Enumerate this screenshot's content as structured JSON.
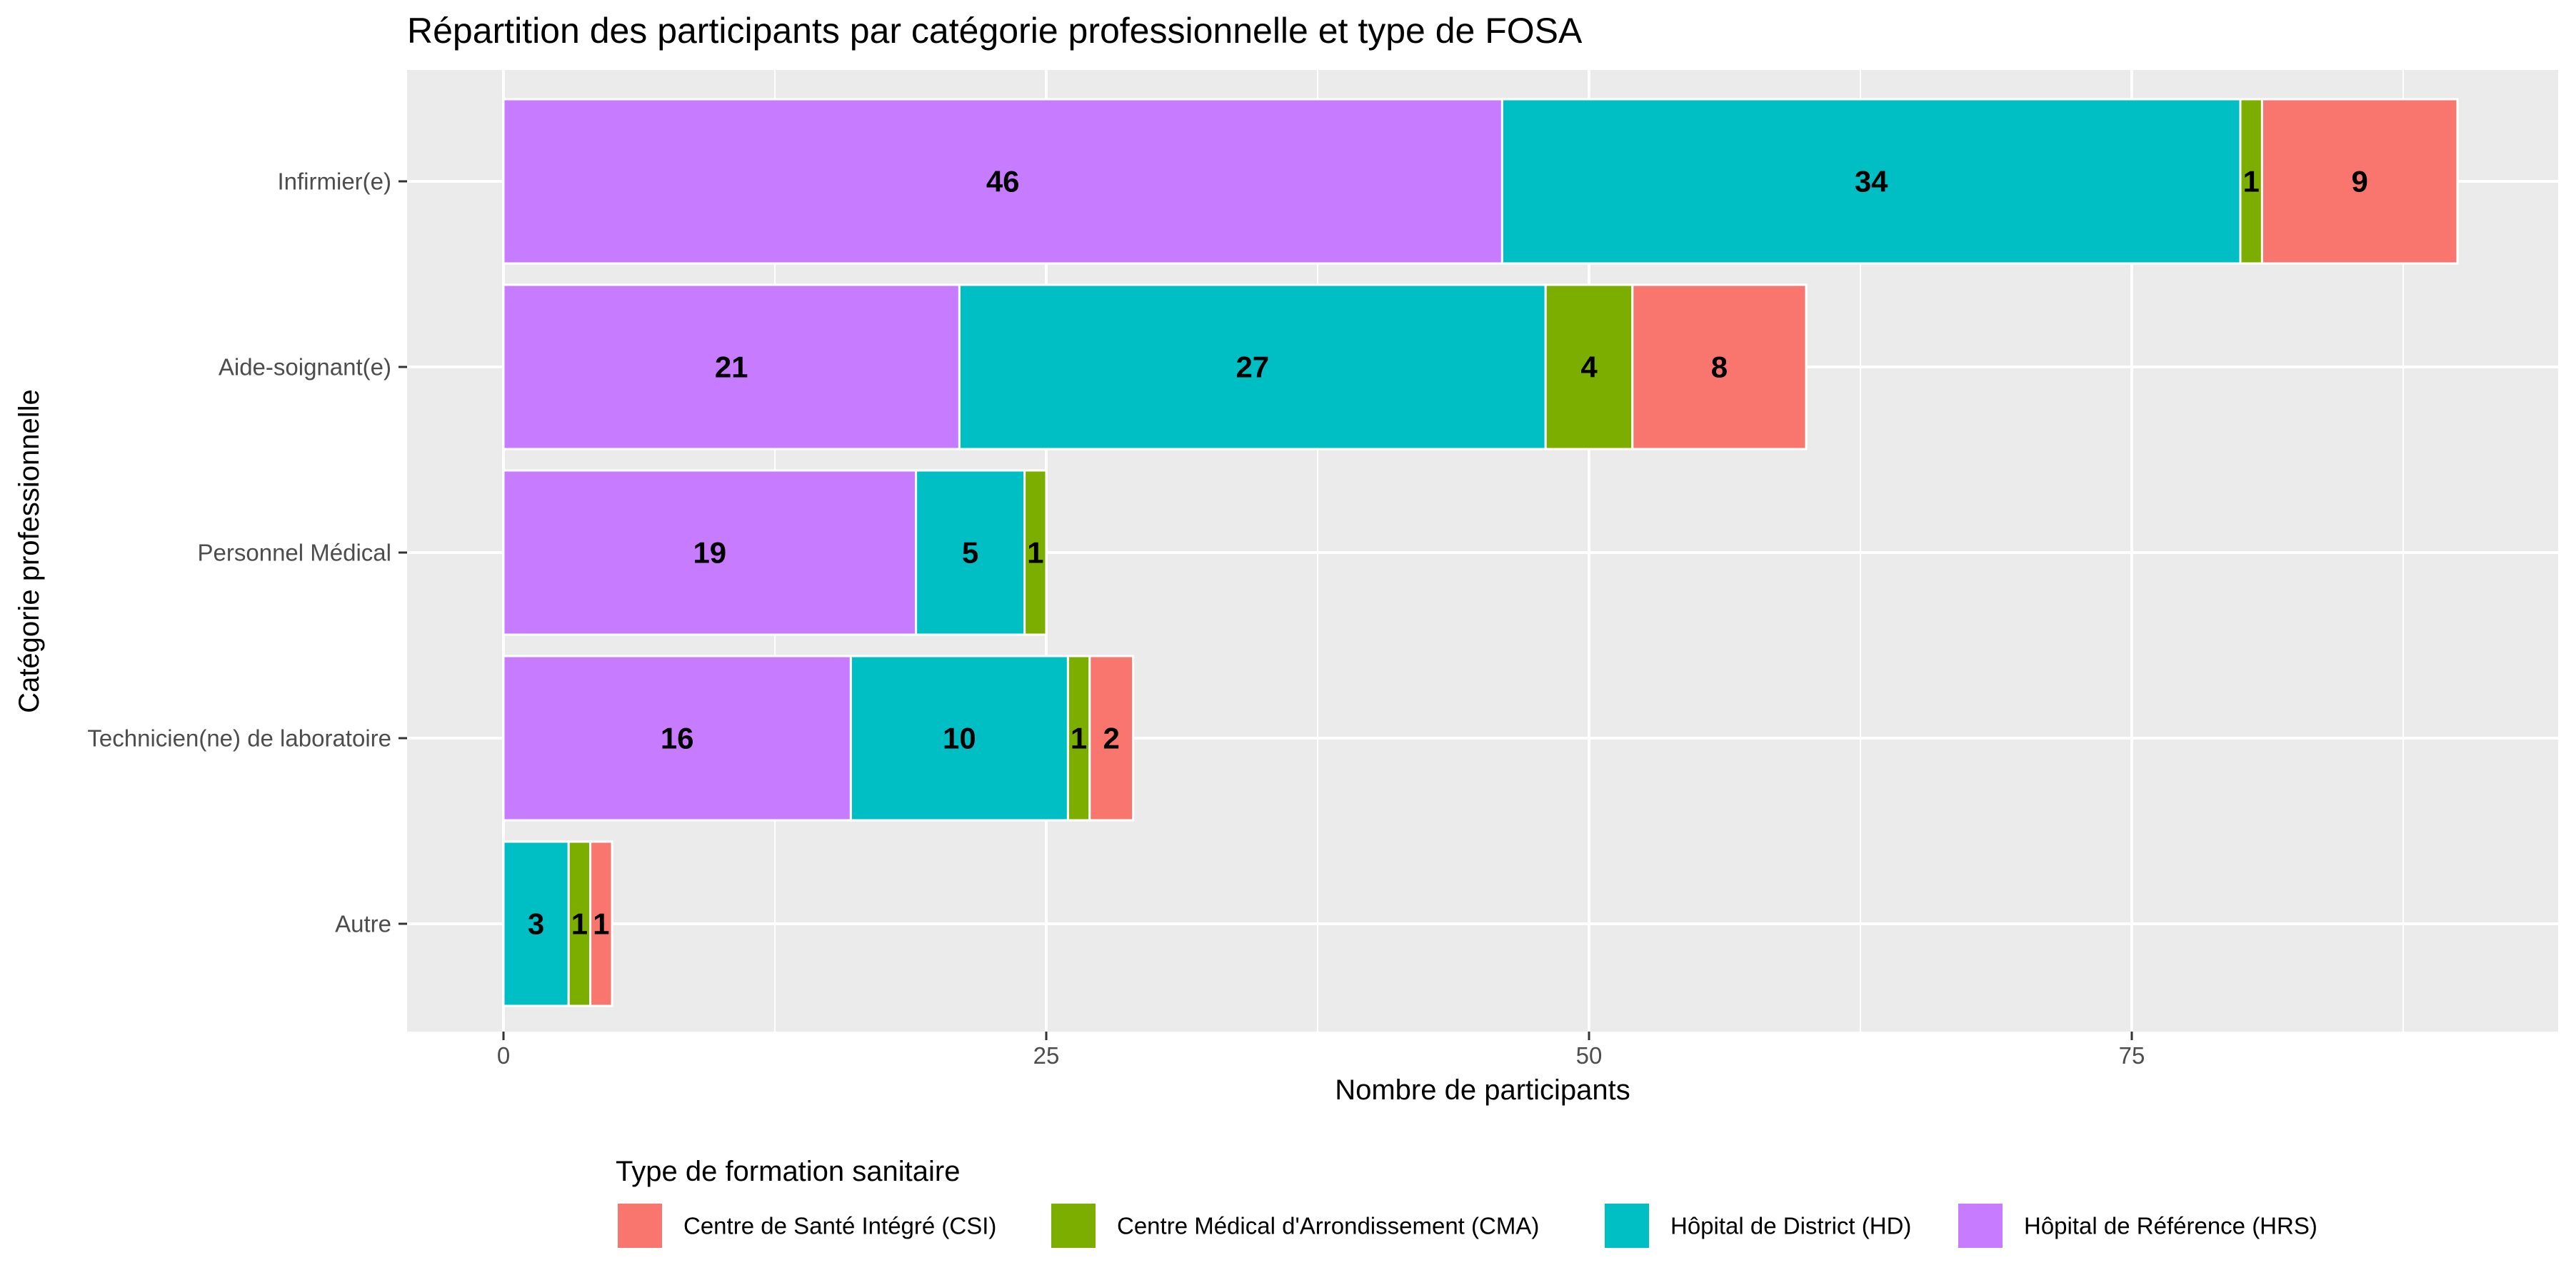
{
  "chart_data": {
    "type": "bar",
    "orientation": "horizontal",
    "stacked": true,
    "title": "Répartition des participants par catégorie professionnelle et type de FOSA",
    "xlabel": "Nombre de participants",
    "ylabel": "Catégorie professionnelle",
    "xlim": [
      0,
      94
    ],
    "xticks": [
      0,
      25,
      50,
      75
    ],
    "grid": true,
    "legend_position": "bottom",
    "legend_title": "Type de formation sanitaire",
    "categories": [
      "Infirmier(e)",
      "Aide-soignant(e)",
      "Personnel Médical",
      "Technicien(ne) de laboratoire",
      "Autre"
    ],
    "series": [
      {
        "name": "Hôpital de Référence (HRS)",
        "color": "#C77CFF",
        "values": [
          46,
          21,
          19,
          16,
          0
        ]
      },
      {
        "name": "Hôpital de District (HD)",
        "color": "#00BFC4",
        "values": [
          34,
          27,
          5,
          10,
          3
        ]
      },
      {
        "name": "Centre Médical d'Arrondissement (CMA)",
        "color": "#7CAE00",
        "values": [
          1,
          4,
          1,
          1,
          1
        ]
      },
      {
        "name": "Centre de Santé Intégré (CSI)",
        "color": "#F8766D",
        "values": [
          9,
          8,
          0,
          2,
          1
        ]
      }
    ],
    "legend_order": [
      "Centre de Santé Intégré (CSI)",
      "Centre Médical d'Arrondissement (CMA)",
      "Hôpital de District (HD)",
      "Hôpital de Référence (HRS)"
    ]
  },
  "colors": {
    "panel_background": "#EBEBEB",
    "grid_major": "#FFFFFF",
    "tick_text": "#4D4D4D"
  }
}
